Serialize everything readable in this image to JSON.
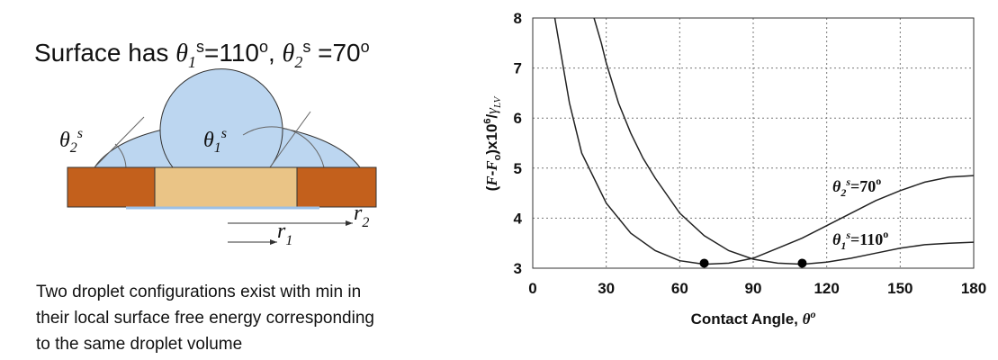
{
  "title": [
    "Surface has ",
    "θ",
    "1",
    "s",
    "=110",
    "o",
    ", ",
    "θ",
    "2",
    "s",
    " =70",
    "o"
  ],
  "diagram": {
    "theta2_label": [
      "θ",
      "2",
      "s"
    ],
    "theta1_label": [
      "θ",
      "1",
      "s"
    ],
    "r2_label": [
      "r",
      "2"
    ],
    "r1_label": [
      "r",
      "1"
    ]
  },
  "description": [
    "Two droplet configurations exist with min in",
    "their local surface free energy corresponding",
    "to the same droplet volume"
  ],
  "chart_data": {
    "type": "line",
    "x_label": [
      "Contact Angle, ",
      "θ",
      "o"
    ],
    "y_label": [
      "(",
      "F",
      "-",
      "F",
      "o",
      ")x10",
      "6",
      "/",
      "γ",
      "LV"
    ],
    "xlim": [
      0,
      180
    ],
    "ylim": [
      3,
      8
    ],
    "xticks": [
      0,
      30,
      60,
      90,
      120,
      150,
      180
    ],
    "yticks": [
      3,
      4,
      5,
      6,
      7,
      8
    ],
    "grid": true,
    "series": [
      {
        "label": [
          "θ",
          "2",
          "s",
          "=70",
          "o"
        ],
        "color": "#222222",
        "x": [
          9,
          15,
          20,
          30,
          40,
          50,
          60,
          70,
          80,
          90,
          100,
          110,
          120,
          130,
          140,
          150,
          160,
          170,
          180
        ],
        "values": [
          8,
          6.3,
          5.3,
          4.3,
          3.7,
          3.35,
          3.15,
          3.08,
          3.1,
          3.2,
          3.4,
          3.6,
          3.85,
          4.1,
          4.35,
          4.55,
          4.72,
          4.82,
          4.85
        ]
      },
      {
        "label": [
          "θ",
          "1",
          "s",
          "=110",
          "o"
        ],
        "color": "#222222",
        "x": [
          25,
          28,
          30,
          35,
          40,
          45,
          50,
          60,
          70,
          80,
          90,
          100,
          110,
          120,
          130,
          140,
          150,
          160,
          170,
          180
        ],
        "values": [
          8,
          7.5,
          7.1,
          6.3,
          5.7,
          5.2,
          4.8,
          4.1,
          3.65,
          3.35,
          3.18,
          3.1,
          3.08,
          3.12,
          3.2,
          3.3,
          3.4,
          3.47,
          3.5,
          3.52
        ]
      }
    ],
    "points": {
      "color": "#000000",
      "x": [
        70,
        110
      ],
      "values": [
        3.1,
        3.1
      ]
    }
  }
}
